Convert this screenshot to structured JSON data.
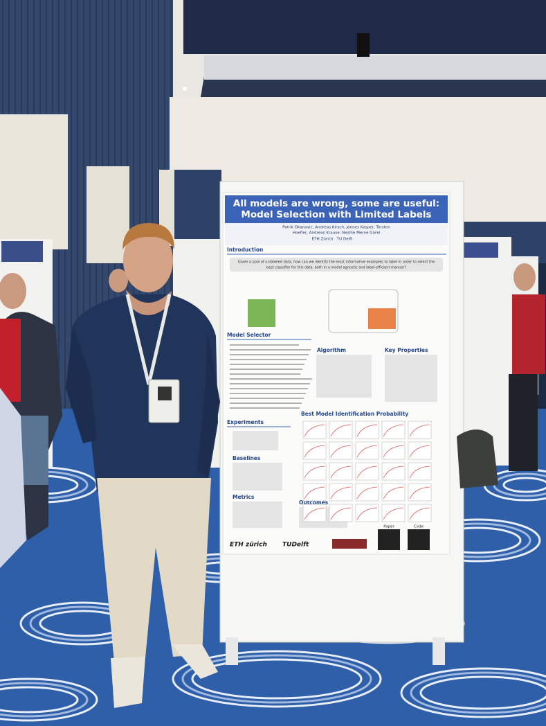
{
  "poster": {
    "title": [
      "All models are wrong, some are useful:",
      "Model Selection with Limited Labels"
    ],
    "authors": [
      "Patrik Okanovic, Andreas Kirsch, Jannes Kasper, Torsten",
      "Hoefler, Andreas Krause, Nezihe Merve Gürel"
    ],
    "affiliations": [
      "ETH Zürich",
      "TU Delft"
    ],
    "intro_heading": "Introduction",
    "intro_question": [
      "Given a pool of unlabeled data, how can we identify the most informative examples to label in order to select the",
      "best classifier for this data, both in a model agnostic and label-efficient manner?"
    ],
    "model_selector_heading": "Model Selector",
    "algorithm_heading": "Algorithm",
    "key_properties_heading": "Key Properties",
    "experiments_heading": "Experiments",
    "baselines_heading": "Baselines",
    "metrics_heading": "Metrics",
    "outcomes_heading": "Outcomes",
    "figure_title": "Best Model Identification Probability",
    "logos": [
      "ETH zürich",
      "TUDelft"
    ],
    "qr_labels": [
      "Paper",
      "Code"
    ]
  }
}
